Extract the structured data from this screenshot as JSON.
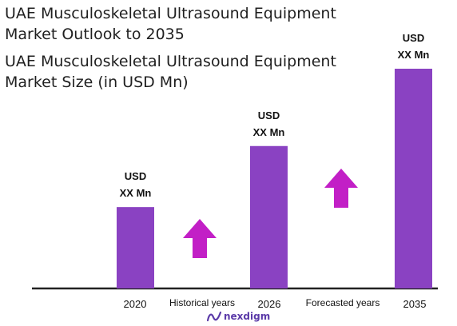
{
  "title": "UAE Musculoskeletal Ultrasound Equipment Market Outlook to 2035",
  "subtitle": "UAE Musculoskeletal Ultrasound Equipment Market Size (in USD Mn)",
  "brand": {
    "name": "nexdigm",
    "color": "#5b3aa8"
  },
  "colors": {
    "bar": "#8a42c2",
    "arrow": "#c21fc6",
    "axis": "#222222"
  },
  "chart_data": {
    "type": "bar",
    "categories": [
      "2020",
      "2026",
      "2035"
    ],
    "values": [
      1.0,
      1.75,
      2.7
    ],
    "value_labels": [
      [
        "USD",
        "XX Mn"
      ],
      [
        "USD",
        "XX Mn"
      ],
      [
        "USD",
        "XX Mn"
      ]
    ],
    "period_labels": [
      "Historical years",
      "Forecasted years"
    ],
    "annotations": [
      "up-arrow",
      "up-arrow"
    ],
    "title": "UAE Musculoskeletal Ultrasound Equipment Market Size (in USD Mn)",
    "ylim": [
      0,
      2.7
    ],
    "grid": false,
    "legend": "none"
  }
}
